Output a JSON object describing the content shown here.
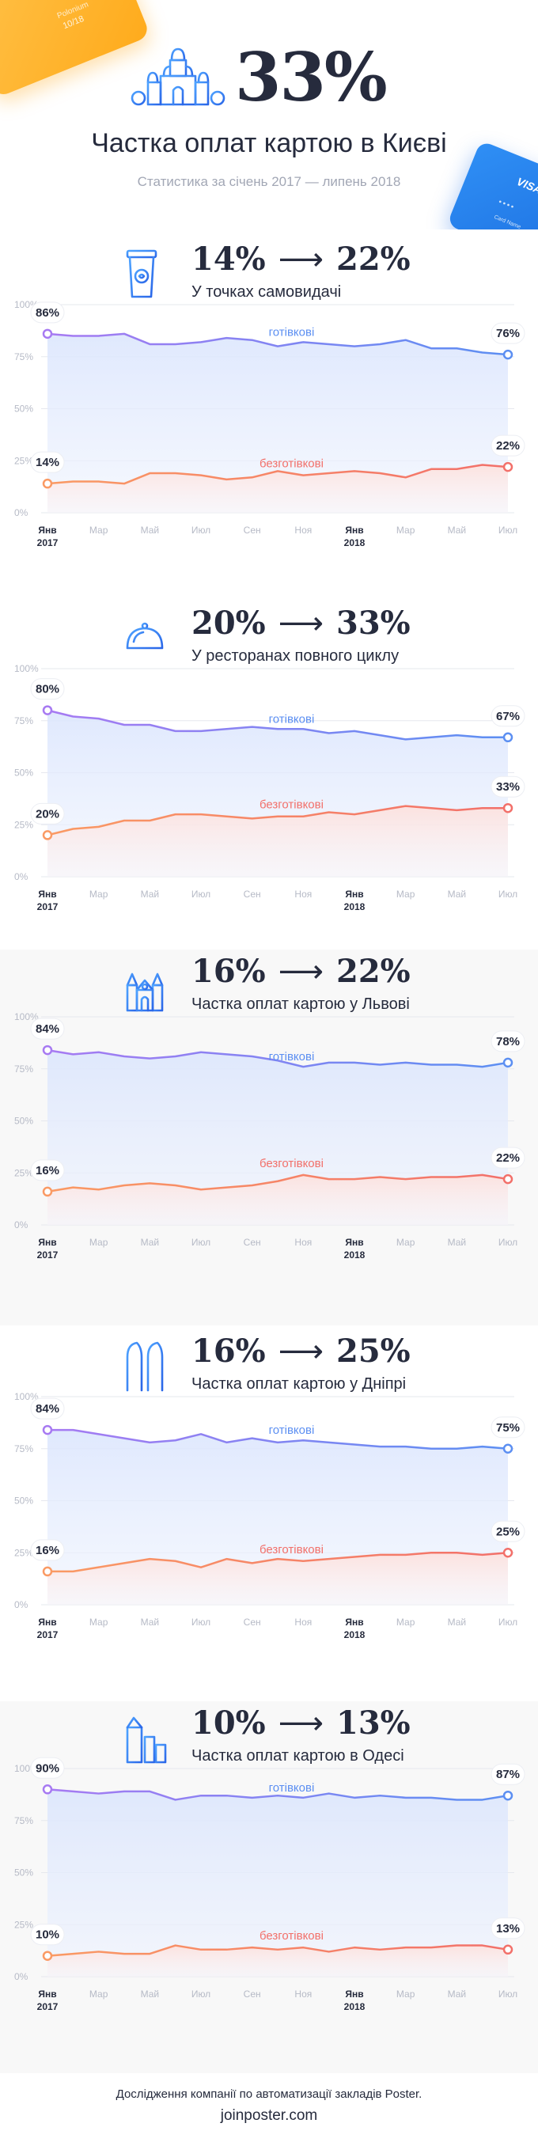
{
  "header": {
    "hero_value": "33%",
    "title": "Частка оплат картою в Києві",
    "subtitle": "Статистика за січень 2017 — липень 2018",
    "card_left": {
      "line1": "Polonium",
      "line2": "10/18"
    },
    "card_right": {
      "brand": "VISA",
      "dots": "••••",
      "name": "Card Name"
    }
  },
  "charts": [
    {
      "id": "takeaway",
      "icon": "coffee-cup-icon",
      "from": "14%",
      "to": "22%",
      "arrow": "⟶",
      "subtitle": "У точках самовидачі",
      "cash_label": "готівкові",
      "card_label": "безготівкові",
      "cash_start": "86%",
      "cash_end": "76%",
      "card_start": "14%",
      "card_end": "22%"
    },
    {
      "id": "restaurants",
      "icon": "cloche-icon",
      "from": "20%",
      "to": "33%",
      "arrow": "⟶",
      "subtitle": "У ресторанах повного циклу",
      "cash_label": "готівкові",
      "card_label": "безготівкові",
      "cash_start": "80%",
      "cash_end": "67%",
      "card_start": "20%",
      "card_end": "33%"
    },
    {
      "id": "lviv",
      "icon": "lviv-church-icon",
      "from": "16%",
      "to": "22%",
      "arrow": "⟶",
      "subtitle": "Частка оплат картою у Львові",
      "cash_label": "готівкові",
      "card_label": "безготівкові",
      "cash_start": "84%",
      "cash_end": "78%",
      "card_start": "16%",
      "card_end": "22%"
    },
    {
      "id": "dnipro",
      "icon": "dnipro-towers-icon",
      "from": "16%",
      "to": "25%",
      "arrow": "⟶",
      "subtitle": "Частка оплат картою у Дніпрі",
      "cash_label": "готівкові",
      "card_label": "безготівкові",
      "cash_start": "84%",
      "cash_end": "75%",
      "card_start": "16%",
      "card_end": "25%"
    },
    {
      "id": "odesa",
      "icon": "odesa-buildings-icon",
      "from": "10%",
      "to": "13%",
      "arrow": "⟶",
      "subtitle": "Частка оплат картою в Одесі",
      "cash_label": "готівкові",
      "card_label": "безготівкові",
      "cash_start": "90%",
      "cash_end": "87%",
      "card_start": "10%",
      "card_end": "13%"
    }
  ],
  "axis": {
    "y_ticks": [
      "0%",
      "25%",
      "50%",
      "75%",
      "100%"
    ],
    "x_ticks": [
      "Янв",
      "Мар",
      "Май",
      "Июл",
      "Сен",
      "Ноя",
      "Янв",
      "Мар",
      "Май",
      "Июл"
    ],
    "year_labels": [
      "2017",
      "2018"
    ]
  },
  "colors": {
    "cash": "#5c8ff2",
    "cash_start": "#a77af2",
    "card": "#f2706a",
    "card_start": "#fa9a64",
    "text": "#262b3d",
    "muted": "#a2a7b5"
  },
  "chart_data": [
    {
      "type": "line",
      "title": "14% ⟶ 22% — У точках самовидачі",
      "x": [
        "2017-01",
        "2017-02",
        "2017-03",
        "2017-04",
        "2017-05",
        "2017-06",
        "2017-07",
        "2017-08",
        "2017-09",
        "2017-10",
        "2017-11",
        "2017-12",
        "2018-01",
        "2018-02",
        "2018-03",
        "2018-04",
        "2018-05",
        "2018-06",
        "2018-07"
      ],
      "ylim": [
        0,
        100
      ],
      "series": [
        {
          "name": "готівкові",
          "values": [
            86,
            85,
            85,
            86,
            81,
            81,
            82,
            84,
            83,
            80,
            82,
            81,
            80,
            81,
            83,
            79,
            79,
            77,
            76
          ]
        },
        {
          "name": "безготівкові",
          "values": [
            14,
            15,
            15,
            14,
            19,
            19,
            18,
            16,
            17,
            20,
            18,
            19,
            20,
            19,
            17,
            21,
            21,
            23,
            22
          ]
        }
      ]
    },
    {
      "type": "line",
      "title": "20% ⟶ 33% — У ресторанах повного циклу",
      "x": [
        "2017-01",
        "2017-02",
        "2017-03",
        "2017-04",
        "2017-05",
        "2017-06",
        "2017-07",
        "2017-08",
        "2017-09",
        "2017-10",
        "2017-11",
        "2017-12",
        "2018-01",
        "2018-02",
        "2018-03",
        "2018-04",
        "2018-05",
        "2018-06",
        "2018-07"
      ],
      "ylim": [
        0,
        100
      ],
      "series": [
        {
          "name": "готівкові",
          "values": [
            80,
            77,
            76,
            73,
            73,
            70,
            70,
            71,
            72,
            71,
            71,
            69,
            70,
            68,
            66,
            67,
            68,
            67,
            67
          ]
        },
        {
          "name": "безготівкові",
          "values": [
            20,
            23,
            24,
            27,
            27,
            30,
            30,
            29,
            28,
            29,
            29,
            31,
            30,
            32,
            34,
            33,
            32,
            33,
            33
          ]
        }
      ]
    },
    {
      "type": "line",
      "title": "16% ⟶ 22% — Частка оплат картою у Львові",
      "x": [
        "2017-01",
        "2017-02",
        "2017-03",
        "2017-04",
        "2017-05",
        "2017-06",
        "2017-07",
        "2017-08",
        "2017-09",
        "2017-10",
        "2017-11",
        "2017-12",
        "2018-01",
        "2018-02",
        "2018-03",
        "2018-04",
        "2018-05",
        "2018-06",
        "2018-07"
      ],
      "ylim": [
        0,
        100
      ],
      "series": [
        {
          "name": "готівкові",
          "values": [
            84,
            82,
            83,
            81,
            80,
            81,
            83,
            82,
            81,
            79,
            76,
            78,
            78,
            77,
            78,
            77,
            77,
            76,
            78
          ]
        },
        {
          "name": "безготівкові",
          "values": [
            16,
            18,
            17,
            19,
            20,
            19,
            17,
            18,
            19,
            21,
            24,
            22,
            22,
            23,
            22,
            23,
            23,
            24,
            22
          ]
        }
      ]
    },
    {
      "type": "line",
      "title": "16% ⟶ 25% — Частка оплат картою у Дніпрі",
      "x": [
        "2017-01",
        "2017-02",
        "2017-03",
        "2017-04",
        "2017-05",
        "2017-06",
        "2017-07",
        "2017-08",
        "2017-09",
        "2017-10",
        "2017-11",
        "2017-12",
        "2018-01",
        "2018-02",
        "2018-03",
        "2018-04",
        "2018-05",
        "2018-06",
        "2018-07"
      ],
      "ylim": [
        0,
        100
      ],
      "series": [
        {
          "name": "готівкові",
          "values": [
            84,
            84,
            82,
            80,
            78,
            79,
            82,
            78,
            80,
            78,
            79,
            78,
            77,
            76,
            76,
            75,
            75,
            76,
            75
          ]
        },
        {
          "name": "безготівкові",
          "values": [
            16,
            16,
            18,
            20,
            22,
            21,
            18,
            22,
            20,
            22,
            21,
            22,
            23,
            24,
            24,
            25,
            25,
            24,
            25
          ]
        }
      ]
    },
    {
      "type": "line",
      "title": "10% ⟶ 13% — Частка оплат картою в Одесі",
      "x": [
        "2017-01",
        "2017-02",
        "2017-03",
        "2017-04",
        "2017-05",
        "2017-06",
        "2017-07",
        "2017-08",
        "2017-09",
        "2017-10",
        "2017-11",
        "2017-12",
        "2018-01",
        "2018-02",
        "2018-03",
        "2018-04",
        "2018-05",
        "2018-06",
        "2018-07"
      ],
      "ylim": [
        0,
        100
      ],
      "series": [
        {
          "name": "готівкові",
          "values": [
            90,
            89,
            88,
            89,
            89,
            85,
            87,
            87,
            86,
            87,
            86,
            88,
            86,
            87,
            86,
            86,
            85,
            85,
            87
          ]
        },
        {
          "name": "безготівкові",
          "values": [
            10,
            11,
            12,
            11,
            11,
            15,
            13,
            13,
            14,
            13,
            14,
            12,
            14,
            13,
            14,
            14,
            15,
            15,
            13
          ]
        }
      ]
    }
  ],
  "footer": {
    "line1": "Дослідження компанії по автоматизації закладів Poster.",
    "line2": "joinposter.com"
  }
}
